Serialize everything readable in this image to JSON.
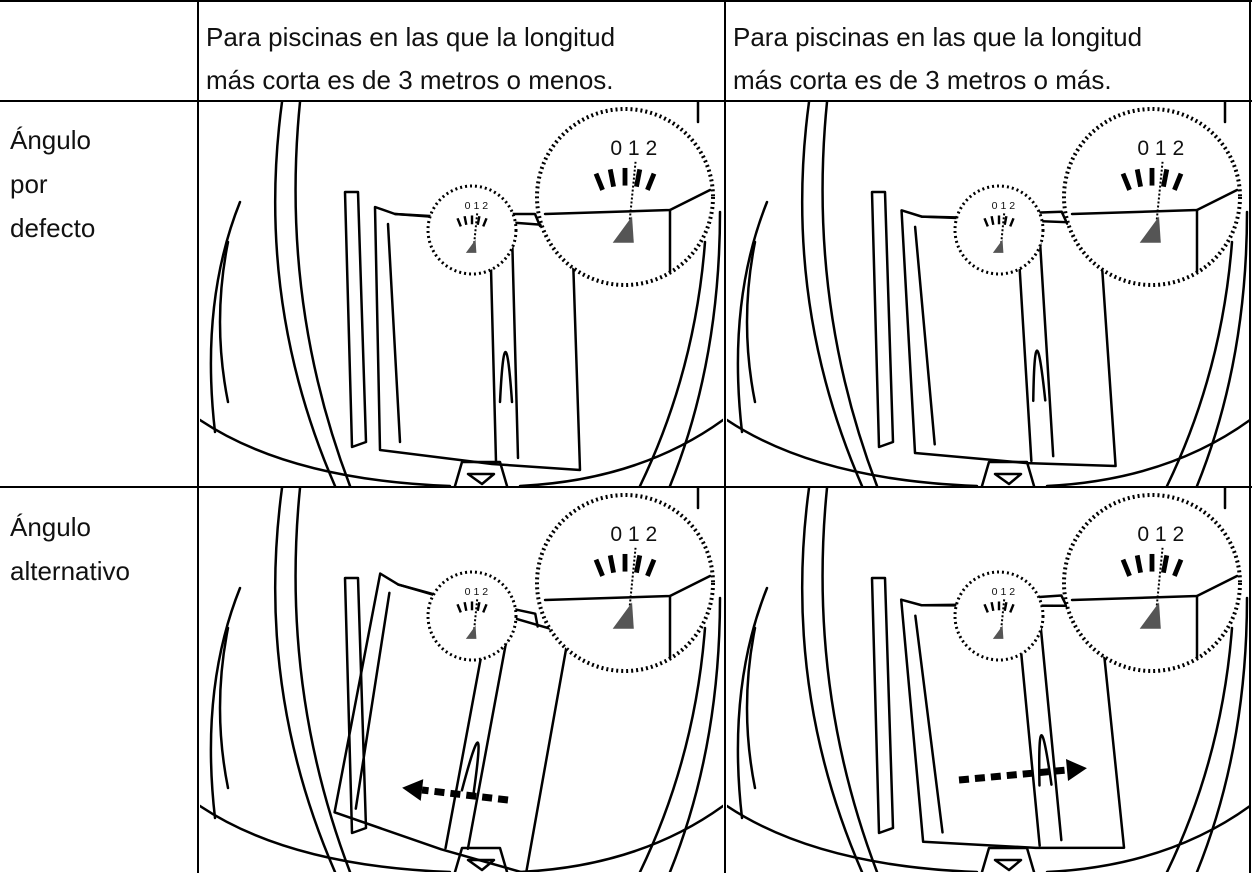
{
  "table": {
    "columns": [
      {
        "lines": [
          "Para piscinas en las que la longitud",
          "más corta es de 3 metros o menos."
        ]
      },
      {
        "lines": [
          "Para piscinas en las que la longitud",
          "más corta es de 3 metros o más."
        ]
      }
    ],
    "rows": [
      {
        "label_lines": [
          "Ángulo",
          "por",
          "defecto"
        ]
      },
      {
        "label_lines": [
          "Ángulo",
          "alternativo"
        ]
      }
    ],
    "dial_scale": "0 1 2"
  }
}
